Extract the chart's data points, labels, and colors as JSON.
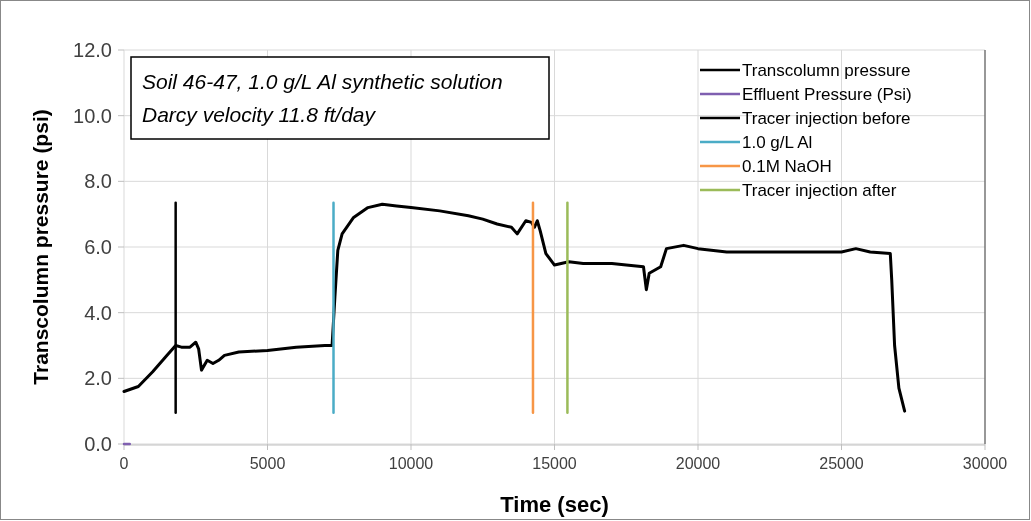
{
  "chart_data": {
    "type": "line",
    "xlabel": "Time (sec)",
    "ylabel": "Transcolumn pressure (psi)",
    "xlim": [
      0,
      30000
    ],
    "xticks": [
      0,
      5000,
      10000,
      15000,
      20000,
      25000,
      30000
    ],
    "ylim": [
      0,
      12
    ],
    "yticks": [
      {
        "value": 0,
        "label": "0.0"
      },
      {
        "value": 2,
        "label": "2.0"
      },
      {
        "value": 4,
        "label": "4.0"
      },
      {
        "value": 6,
        "label": "6.0"
      },
      {
        "value": 8,
        "label": "8.0"
      },
      {
        "value": 10,
        "label": "10.0"
      },
      {
        "value": 12,
        "label": "12.0"
      }
    ],
    "grid": true,
    "legend": "top right",
    "marker": "none",
    "line_style": "solid",
    "annotations": [
      "Soil 46-47, 1.0 g/L Al synthetic solution",
      "Darcy velocity 11.8 ft/day"
    ],
    "series": [
      {
        "name": "Transcolumn pressure",
        "color": "#000000",
        "x": [
          0,
          500,
          1000,
          1500,
          1800,
          2000,
          2300,
          2500,
          2600,
          2700,
          2900,
          3100,
          3300,
          3500,
          4000,
          5000,
          6000,
          7000,
          7250,
          7350,
          7450,
          7600,
          8000,
          8500,
          9000,
          9500,
          10000,
          11000,
          12000,
          12500,
          13000,
          13500,
          13700,
          14000,
          14200,
          14300,
          14400,
          14500,
          14700,
          15000,
          15500,
          16000,
          17000,
          17500,
          18100,
          18200,
          18300,
          18700,
          18900,
          19500,
          20000,
          21000,
          22000,
          23000,
          24000,
          25000,
          25500,
          26000,
          26700,
          26750,
          26850,
          27000,
          27200
        ],
        "values": [
          1.6,
          1.75,
          2.2,
          2.7,
          3.0,
          2.95,
          2.95,
          3.1,
          2.9,
          2.25,
          2.55,
          2.45,
          2.55,
          2.7,
          2.8,
          2.85,
          2.95,
          3.0,
          3.0,
          4.5,
          5.9,
          6.4,
          6.9,
          7.2,
          7.3,
          7.25,
          7.2,
          7.1,
          6.95,
          6.85,
          6.7,
          6.6,
          6.4,
          6.8,
          6.75,
          6.6,
          6.8,
          6.5,
          5.8,
          5.45,
          5.55,
          5.5,
          5.5,
          5.45,
          5.4,
          4.7,
          5.2,
          5.4,
          5.95,
          6.05,
          5.95,
          5.85,
          5.85,
          5.85,
          5.85,
          5.85,
          5.95,
          5.85,
          5.8,
          5.0,
          3.0,
          1.7,
          1.0
        ]
      },
      {
        "name": "Effluent Pressure (Psi)",
        "color": "#7f5fb0",
        "x": [
          0,
          200
        ],
        "values": [
          0,
          0
        ]
      },
      {
        "name": "Tracer injection before",
        "color": "#000000",
        "x": [
          1800,
          1800
        ],
        "values": [
          0.95,
          7.35
        ]
      },
      {
        "name": "1.0 g/L Al",
        "color": "#4bacc6",
        "x": [
          7300,
          7300
        ],
        "values": [
          0.95,
          7.35
        ]
      },
      {
        "name": "0.1M NaOH",
        "color": "#f79646",
        "x": [
          14250,
          14250
        ],
        "values": [
          0.95,
          7.35
        ]
      },
      {
        "name": "Tracer injection after",
        "color": "#9bbb59",
        "x": [
          15450,
          15450
        ],
        "values": [
          0.95,
          7.35
        ]
      }
    ]
  }
}
